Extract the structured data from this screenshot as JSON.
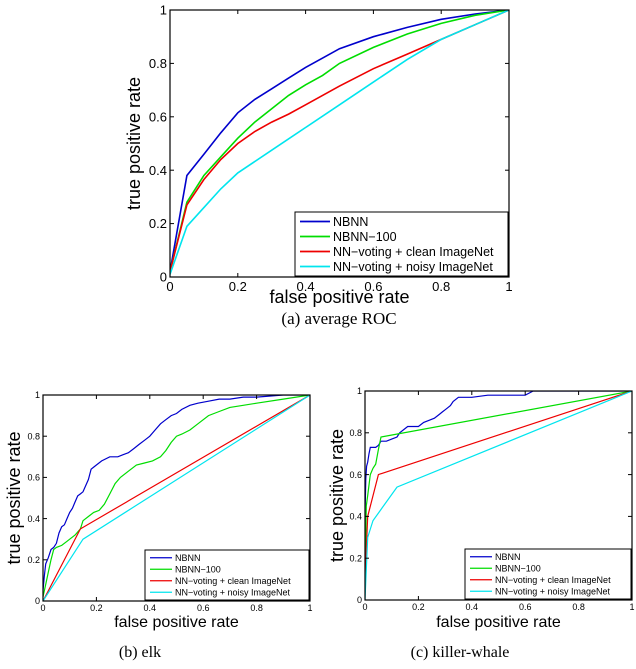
{
  "chart_data": [
    {
      "id": "average",
      "type": "line",
      "caption": "(a) average ROC",
      "xlabel": "false positive rate",
      "ylabel": "true positive rate",
      "xlim": [
        0,
        1
      ],
      "ylim": [
        0,
        1
      ],
      "xticks": [
        "0",
        "0.2",
        "0.4",
        "0.6",
        "0.8",
        "1"
      ],
      "yticks": [
        "0",
        "0.2",
        "0.4",
        "0.6",
        "0.8",
        "1"
      ],
      "grid": false,
      "legend_position": "bottom-right",
      "series": [
        {
          "name": "NBNN",
          "color": "#0000cc",
          "x": [
            0,
            0.05,
            0.1,
            0.15,
            0.2,
            0.25,
            0.3,
            0.35,
            0.4,
            0.45,
            0.5,
            0.6,
            0.7,
            0.8,
            0.9,
            1
          ],
          "y": [
            0.02,
            0.38,
            0.46,
            0.54,
            0.615,
            0.665,
            0.705,
            0.745,
            0.785,
            0.82,
            0.855,
            0.9,
            0.935,
            0.965,
            0.985,
            1
          ]
        },
        {
          "name": "NBNN-100",
          "color": "#00dd00",
          "x": [
            0,
            0.05,
            0.1,
            0.15,
            0.2,
            0.25,
            0.3,
            0.35,
            0.4,
            0.45,
            0.5,
            0.6,
            0.7,
            0.8,
            0.9,
            1
          ],
          "y": [
            0.02,
            0.28,
            0.38,
            0.45,
            0.52,
            0.58,
            0.63,
            0.68,
            0.72,
            0.755,
            0.8,
            0.86,
            0.91,
            0.95,
            0.98,
            1
          ]
        },
        {
          "name": "NN-voting + clean ImageNet",
          "color": "#ee0000",
          "x": [
            0,
            0.05,
            0.1,
            0.15,
            0.2,
            0.25,
            0.3,
            0.35,
            0.4,
            0.5,
            0.6,
            0.7,
            0.8,
            0.9,
            1
          ],
          "y": [
            0.02,
            0.27,
            0.365,
            0.44,
            0.5,
            0.545,
            0.58,
            0.61,
            0.645,
            0.715,
            0.78,
            0.835,
            0.89,
            0.945,
            1
          ]
        },
        {
          "name": "NN-voting + noisy ImageNet",
          "color": "#00e5ee",
          "x": [
            0,
            0.05,
            0.1,
            0.15,
            0.2,
            0.3,
            0.4,
            0.5,
            0.6,
            0.7,
            0.8,
            0.9,
            1
          ],
          "y": [
            0.01,
            0.19,
            0.26,
            0.33,
            0.39,
            0.475,
            0.56,
            0.645,
            0.73,
            0.815,
            0.89,
            0.945,
            1
          ]
        }
      ]
    },
    {
      "id": "elk",
      "type": "line",
      "caption": "(b) elk",
      "xlabel": "false positive rate",
      "ylabel": "true positive rate",
      "xlim": [
        0,
        1
      ],
      "ylim": [
        0,
        1
      ],
      "xticks": [
        "0",
        "0.2",
        "0.4",
        "0.6",
        "0.8",
        "1"
      ],
      "yticks": [
        "0",
        "0.2",
        "0.4",
        "0.6",
        "0.8",
        "1"
      ],
      "grid": false,
      "legend_position": "bottom-right",
      "series": [
        {
          "name": "NBNN",
          "color": "#0000cc",
          "x": [
            0,
            0.005,
            0.01,
            0.02,
            0.03,
            0.04,
            0.05,
            0.06,
            0.07,
            0.08,
            0.09,
            0.1,
            0.11,
            0.12,
            0.13,
            0.14,
            0.15,
            0.16,
            0.17,
            0.18,
            0.19,
            0.2,
            0.22,
            0.25,
            0.28,
            0.3,
            0.32,
            0.34,
            0.36,
            0.38,
            0.4,
            0.42,
            0.44,
            0.46,
            0.48,
            0.5,
            0.52,
            0.55,
            0.58,
            0.62,
            0.66,
            0.7,
            0.75,
            0.8,
            0.9,
            1
          ],
          "y": [
            0.05,
            0.12,
            0.18,
            0.21,
            0.25,
            0.26,
            0.28,
            0.33,
            0.36,
            0.37,
            0.4,
            0.43,
            0.45,
            0.48,
            0.51,
            0.52,
            0.53,
            0.56,
            0.59,
            0.64,
            0.65,
            0.66,
            0.68,
            0.7,
            0.7,
            0.71,
            0.72,
            0.74,
            0.76,
            0.78,
            0.8,
            0.83,
            0.86,
            0.88,
            0.9,
            0.91,
            0.93,
            0.95,
            0.96,
            0.97,
            0.98,
            0.98,
            0.99,
            0.99,
            1,
            1
          ]
        },
        {
          "name": "NBNN-100",
          "color": "#00dd00",
          "x": [
            0,
            0.01,
            0.02,
            0.03,
            0.04,
            0.05,
            0.07,
            0.09,
            0.1,
            0.12,
            0.14,
            0.15,
            0.17,
            0.19,
            0.21,
            0.23,
            0.25,
            0.27,
            0.29,
            0.32,
            0.35,
            0.38,
            0.41,
            0.44,
            0.46,
            0.48,
            0.5,
            0.52,
            0.55,
            0.58,
            0.62,
            0.66,
            0.7,
            0.75,
            0.8,
            0.9,
            1
          ],
          "y": [
            0.02,
            0.08,
            0.14,
            0.2,
            0.25,
            0.26,
            0.27,
            0.29,
            0.3,
            0.32,
            0.35,
            0.39,
            0.41,
            0.43,
            0.44,
            0.47,
            0.52,
            0.57,
            0.6,
            0.63,
            0.66,
            0.67,
            0.68,
            0.7,
            0.73,
            0.77,
            0.8,
            0.81,
            0.83,
            0.86,
            0.9,
            0.92,
            0.94,
            0.95,
            0.96,
            0.98,
            1
          ]
        },
        {
          "name": "NN-voting + clean ImageNet",
          "color": "#ee0000",
          "x": [
            0,
            0.14,
            1
          ],
          "y": [
            0,
            0.35,
            1
          ]
        },
        {
          "name": "NN-voting + noisy ImageNet",
          "color": "#00e5ee",
          "x": [
            0,
            0.15,
            1
          ],
          "y": [
            0,
            0.3,
            1
          ]
        }
      ]
    },
    {
      "id": "killer-whale",
      "type": "line",
      "caption": "(c) killer-whale",
      "xlabel": "false positive rate",
      "ylabel": "true positive rate",
      "xlim": [
        0,
        1
      ],
      "ylim": [
        0,
        1
      ],
      "xticks": [
        "0",
        "0.2",
        "0.4",
        "0.6",
        "0.8",
        "1"
      ],
      "yticks": [
        "0",
        "0.2",
        "0.4",
        "0.6",
        "0.8",
        "1"
      ],
      "grid": false,
      "legend_position": "bottom-right",
      "series": [
        {
          "name": "NBNN",
          "color": "#0000cc",
          "x": [
            0,
            0.003,
            0.006,
            0.01,
            0.015,
            0.02,
            0.03,
            0.04,
            0.05,
            0.06,
            0.08,
            0.1,
            0.12,
            0.13,
            0.16,
            0.2,
            0.22,
            0.24,
            0.26,
            0.27,
            0.28,
            0.29,
            0.3,
            0.31,
            0.32,
            0.33,
            0.35,
            0.4,
            0.46,
            0.5,
            0.55,
            0.6,
            0.63,
            0.7,
            0.8,
            0.9,
            1
          ],
          "y": [
            0.4,
            0.58,
            0.64,
            0.66,
            0.7,
            0.73,
            0.73,
            0.73,
            0.74,
            0.76,
            0.76,
            0.77,
            0.78,
            0.8,
            0.83,
            0.83,
            0.85,
            0.86,
            0.87,
            0.88,
            0.89,
            0.9,
            0.91,
            0.92,
            0.93,
            0.95,
            0.97,
            0.97,
            0.98,
            0.98,
            0.98,
            0.98,
            1,
            1,
            1,
            1,
            1
          ]
        },
        {
          "name": "NBNN-100",
          "color": "#00dd00",
          "x": [
            0,
            0.005,
            0.01,
            0.02,
            0.03,
            0.04,
            0.05,
            0.06,
            1
          ],
          "y": [
            0.1,
            0.45,
            0.5,
            0.6,
            0.63,
            0.65,
            0.72,
            0.78,
            1
          ]
        },
        {
          "name": "NN-voting + clean ImageNet",
          "color": "#ee0000",
          "x": [
            0,
            0.01,
            0.05,
            1
          ],
          "y": [
            0.1,
            0.4,
            0.6,
            1
          ]
        },
        {
          "name": "NN-voting + noisy ImageNet",
          "color": "#00e5ee",
          "x": [
            0,
            0.01,
            0.03,
            0.12,
            1
          ],
          "y": [
            0,
            0.3,
            0.38,
            0.54,
            1
          ]
        }
      ]
    }
  ]
}
